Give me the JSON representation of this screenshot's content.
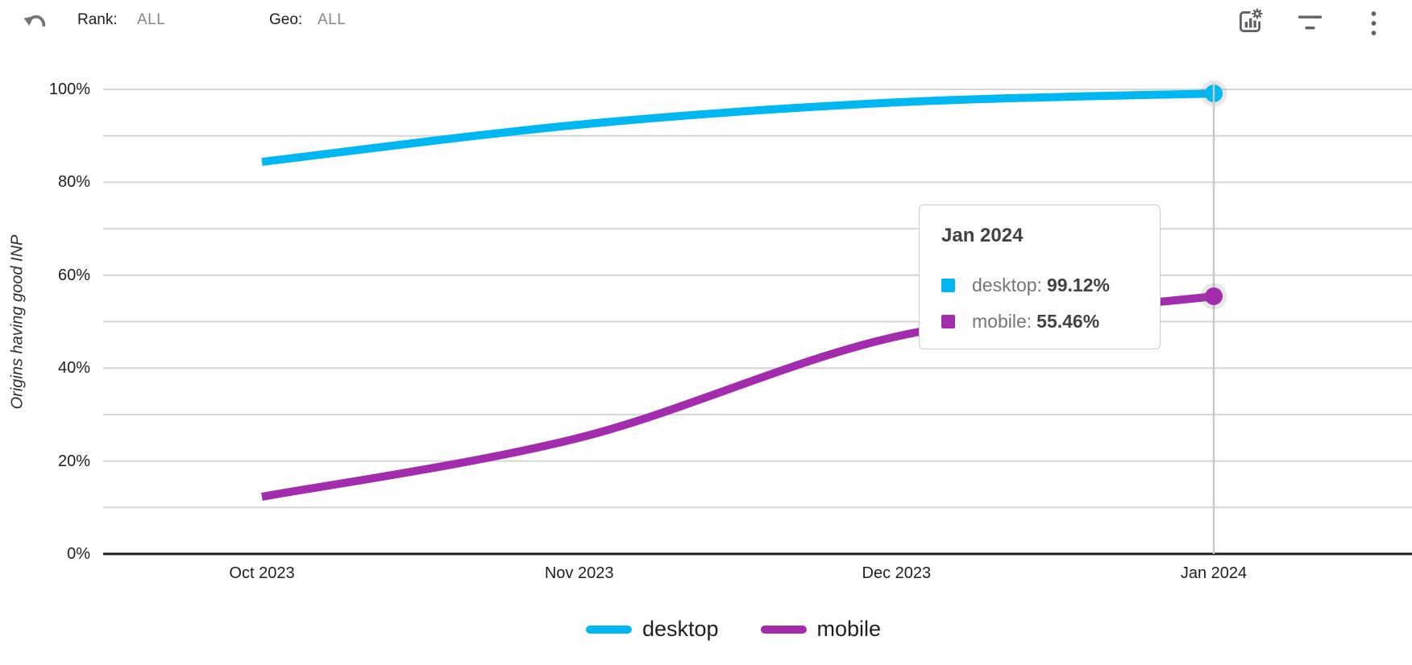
{
  "toolbar": {
    "rank_label": "Rank:",
    "rank_value": "ALL",
    "geo_label": "Geo:",
    "geo_value": "ALL"
  },
  "chart_data": {
    "type": "line",
    "title": "",
    "xlabel": "",
    "ylabel": "Origins having good INP",
    "categories": [
      "Oct 2023",
      "Nov 2023",
      "Dec 2023",
      "Jan 2024"
    ],
    "series": [
      {
        "name": "desktop",
        "color": "#00b8f1",
        "values": [
          84.4,
          92.4,
          97.2,
          99.12
        ]
      },
      {
        "name": "mobile",
        "color": "#a32bad",
        "values": [
          12.3,
          25.0,
          46.8,
          55.46
        ]
      }
    ],
    "ylim": [
      0,
      100
    ],
    "y_tick_labels": [
      "0%",
      "20%",
      "40%",
      "60%",
      "80%",
      "100%"
    ],
    "grid_interval_pct": 10,
    "grid": "horizontal",
    "legend_position": "bottom",
    "selected_category": "Jan 2024",
    "selected_values": {
      "desktop": "99.12%",
      "mobile": "55.46%"
    }
  },
  "tooltip": {
    "title": "Jan 2024",
    "rows": [
      {
        "label": "desktop:",
        "value": "99.12%"
      },
      {
        "label": "mobile:",
        "value": "55.46%"
      }
    ]
  },
  "colors": {
    "gridline": "#d6d6d6",
    "axis": "#1b1b1b",
    "crosshair": "#c9c9c9",
    "icon": "#5f6368",
    "muted_text": "#84888c"
  }
}
